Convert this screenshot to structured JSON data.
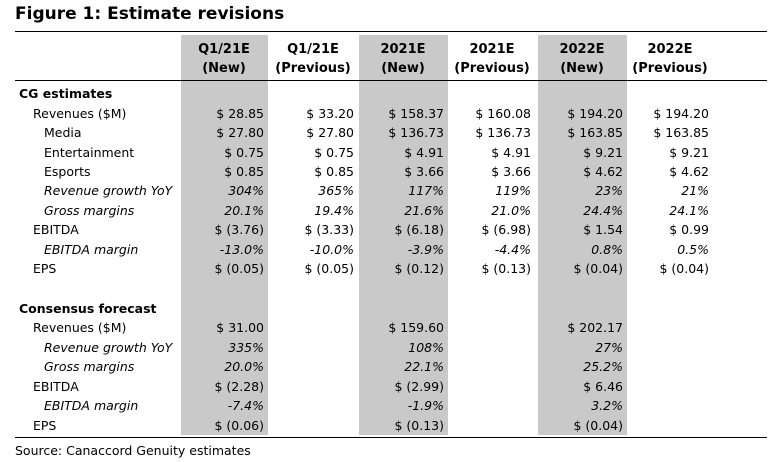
{
  "title": "Figure 1: Estimate revisions",
  "source": "Source: Canaccord Genuity estimates",
  "columns": [
    {
      "line1": "Q1/21E",
      "line2": "(New)"
    },
    {
      "line1": "Q1/21E",
      "line2": "(Previous)"
    },
    {
      "line1": "2021E",
      "line2": "(New)"
    },
    {
      "line1": "2021E",
      "line2": "(Previous)"
    },
    {
      "line1": "2022E",
      "line2": "(New)"
    },
    {
      "line1": "2022E",
      "line2": "(Previous)"
    }
  ],
  "cg_section": "CG estimates",
  "cg_rows": [
    {
      "label": "Revenues ($M)",
      "values": [
        "$ 28.85",
        "$ 33.20",
        "$ 158.37",
        "$ 160.08",
        "$ 194.20",
        "$ 194.20"
      ]
    },
    {
      "label": "Media",
      "values": [
        "$ 27.80",
        "$ 27.80",
        "$ 136.73",
        "$ 136.73",
        "$ 163.85",
        "$ 163.85"
      ]
    },
    {
      "label": "Entertainment",
      "values": [
        "$ 0.75",
        "$ 0.75",
        "$ 4.91",
        "$ 4.91",
        "$ 9.21",
        "$ 9.21"
      ]
    },
    {
      "label": "Esports",
      "values": [
        "$ 0.85",
        "$ 0.85",
        "$ 3.66",
        "$ 3.66",
        "$ 4.62",
        "$ 4.62"
      ]
    },
    {
      "label": "Revenue growth YoY",
      "values": [
        "304%",
        "365%",
        "117%",
        "119%",
        "23%",
        "21%"
      ]
    },
    {
      "label": "Gross margins",
      "values": [
        "20.1%",
        "19.4%",
        "21.6%",
        "21.0%",
        "24.4%",
        "24.1%"
      ]
    },
    {
      "label": "EBITDA",
      "values": [
        "$ (3.76)",
        "$ (3.33)",
        "$ (6.18)",
        "$ (6.98)",
        "$ 1.54",
        "$ 0.99"
      ]
    },
    {
      "label": "EBITDA margin",
      "values": [
        "-13.0%",
        "-10.0%",
        "-3.9%",
        "-4.4%",
        "0.8%",
        "0.5%"
      ]
    },
    {
      "label": "EPS",
      "values": [
        "$ (0.05)",
        "$ (0.05)",
        "$ (0.12)",
        "$ (0.13)",
        "$ (0.04)",
        "$ (0.04)"
      ]
    }
  ],
  "consensus_section": "Consensus forecast",
  "consensus_rows": [
    {
      "label": "Revenues ($M)",
      "values": [
        "$ 31.00",
        "$ 159.60",
        "$ 202.17"
      ]
    },
    {
      "label": "Revenue growth YoY",
      "values": [
        "335%",
        "108%",
        "27%"
      ]
    },
    {
      "label": "Gross margins",
      "values": [
        "20.0%",
        "22.1%",
        "25.2%"
      ]
    },
    {
      "label": "EBITDA",
      "values": [
        "$ (2.28)",
        "$ (2.99)",
        "$ 6.46"
      ]
    },
    {
      "label": "EBITDA margin",
      "values": [
        "-7.4%",
        "-1.9%",
        "3.2%"
      ]
    },
    {
      "label": "EPS",
      "values": [
        "$ (0.06)",
        "$ (0.13)",
        "$ (0.04)"
      ]
    }
  ],
  "colors": {
    "shade": "#c9c9c9"
  }
}
